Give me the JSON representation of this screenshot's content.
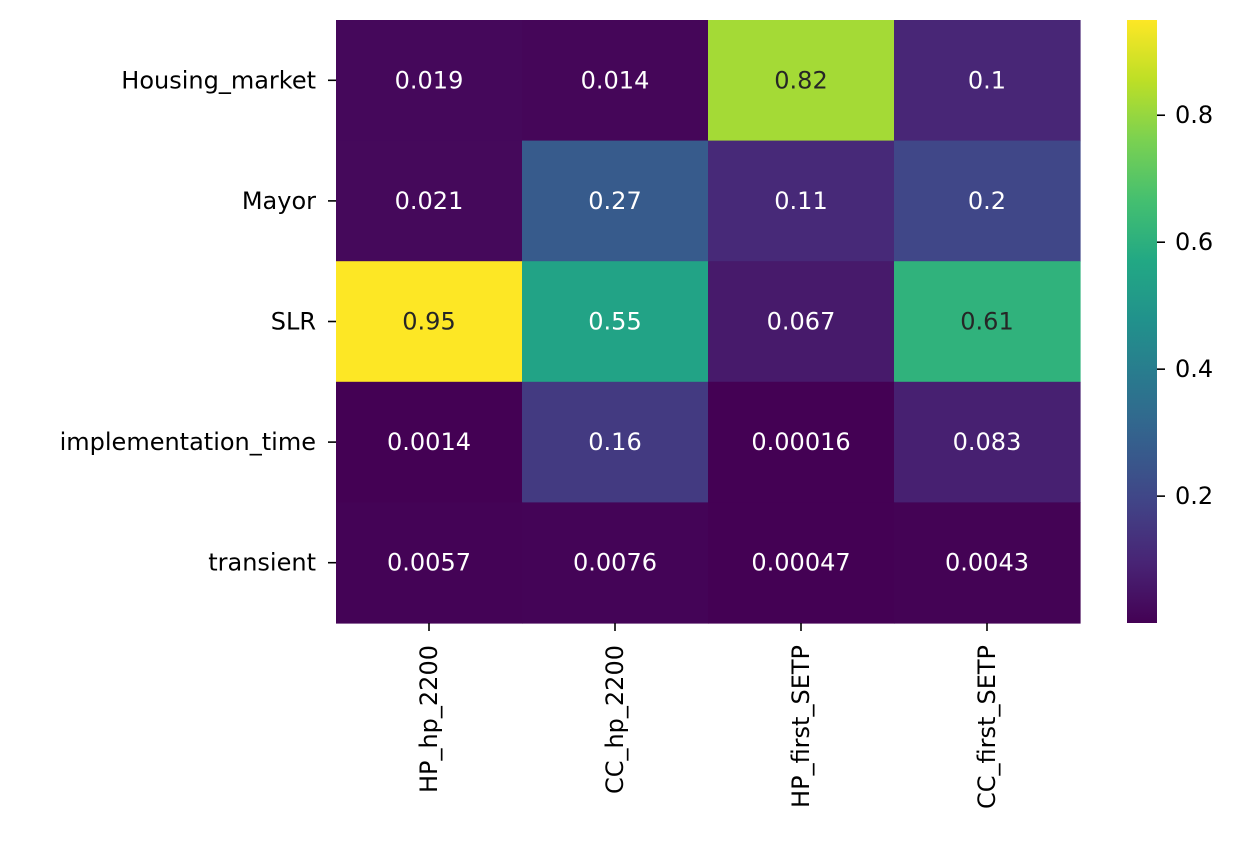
{
  "chart_data": {
    "type": "heatmap",
    "rows": [
      "Housing_market",
      "Mayor",
      "SLR",
      "implementation_time",
      "transient"
    ],
    "columns": [
      "HP_hp_2200",
      "CC_hp_2200",
      "HP_first_SETP",
      "CC_first_SETP"
    ],
    "values": [
      [
        0.019,
        0.014,
        0.82,
        0.1
      ],
      [
        0.021,
        0.27,
        0.11,
        0.2
      ],
      [
        0.95,
        0.55,
        0.067,
        0.61
      ],
      [
        0.0014,
        0.16,
        0.00016,
        0.083
      ],
      [
        0.0057,
        0.0076,
        0.00047,
        0.0043
      ]
    ],
    "cell_labels": [
      [
        "0.019",
        "0.014",
        "0.82",
        "0.1"
      ],
      [
        "0.021",
        "0.27",
        "0.11",
        "0.2"
      ],
      [
        "0.95",
        "0.55",
        "0.067",
        "0.61"
      ],
      [
        "0.0014",
        "0.16",
        "0.00016",
        "0.083"
      ],
      [
        "0.0057",
        "0.0076",
        "0.00047",
        "0.0043"
      ]
    ],
    "colormap": "viridis",
    "color_range": [
      0.00016,
      0.95
    ],
    "colorbar_ticks": [
      0.2,
      0.4,
      0.6,
      0.8
    ],
    "colorbar_tick_labels": [
      "0.2",
      "0.4",
      "0.6",
      "0.8"
    ],
    "title": "",
    "xlabel": "",
    "ylabel": ""
  }
}
